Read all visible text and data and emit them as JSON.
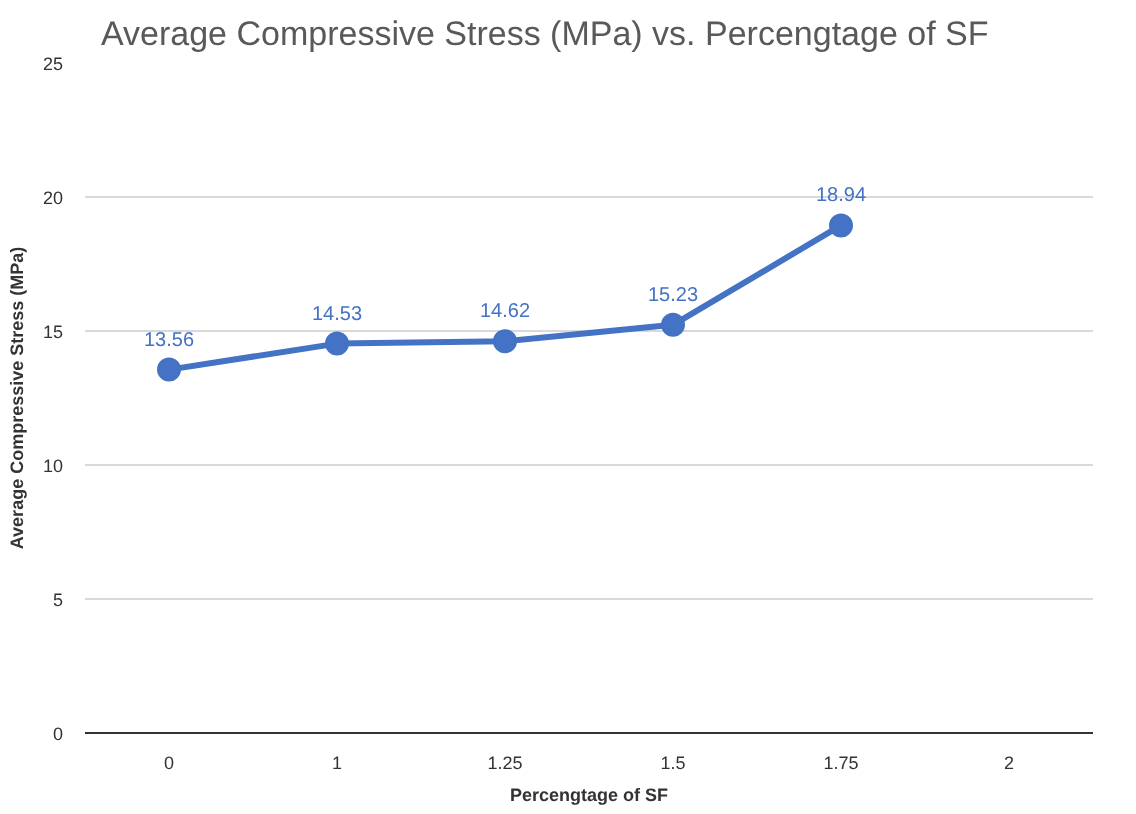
{
  "chart_data": {
    "type": "line",
    "title": "Average Compressive Stress (MPa) vs. Percengtage of SF",
    "xlabel": "Percengtage of SF",
    "ylabel": "Average Compressive Stress (MPa)",
    "categories": [
      "0",
      "1",
      "1.25",
      "1.5",
      "1.75",
      "2"
    ],
    "series": [
      {
        "color": "#4472c4",
        "values": [
          13.56,
          14.53,
          14.62,
          15.23,
          18.94,
          null
        ]
      }
    ],
    "ylim": [
      0,
      25
    ],
    "yticks": [
      0,
      5,
      10,
      15,
      20,
      25
    ],
    "grid": "y",
    "marker": "circle",
    "line_style": "solid",
    "data_labels": true
  }
}
